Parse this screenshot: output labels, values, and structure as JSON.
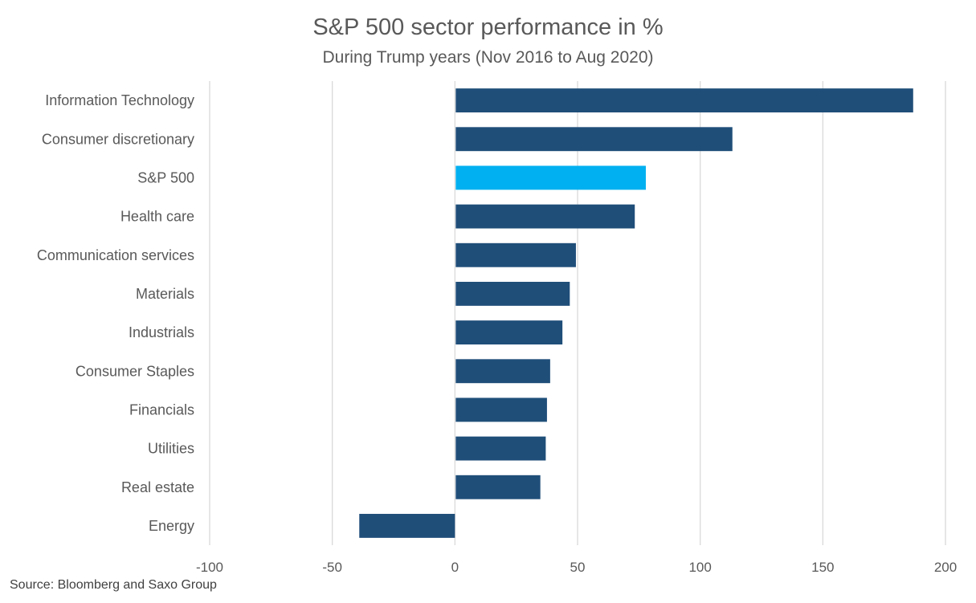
{
  "chart_data": {
    "type": "bar",
    "orientation": "horizontal",
    "title": "S&P 500 sector performance in %",
    "subtitle": "During Trump years (Nov 2016 to Aug 2020)",
    "categories": [
      "Information Technology",
      "Consumer discretionary",
      "S&P 500",
      "Health care",
      "Communication services",
      "Materials",
      "Industrials",
      "Consumer Staples",
      "Financials",
      "Utilities",
      "Real estate",
      "Energy"
    ],
    "values": [
      186.5,
      112.8,
      77.5,
      73.0,
      49.0,
      46.5,
      43.5,
      38.5,
      37.2,
      36.7,
      34.5,
      -39.0
    ],
    "highlight_category": "S&P 500",
    "xlim": [
      -100,
      200
    ],
    "xticks": [
      -100,
      -50,
      0,
      50,
      100,
      150,
      200
    ],
    "xtick_labels": [
      "-100",
      "-50",
      "0",
      "50",
      "100",
      "150",
      "200"
    ],
    "grid": "vertical",
    "legend": "none",
    "xlabel": "",
    "ylabel": "",
    "colors": {
      "bar": "#1f4e79",
      "highlight": "#00b0f0",
      "grid": "#d9d9d9",
      "text": "#595959"
    }
  },
  "source": "Source: Bloomberg and Saxo Group"
}
